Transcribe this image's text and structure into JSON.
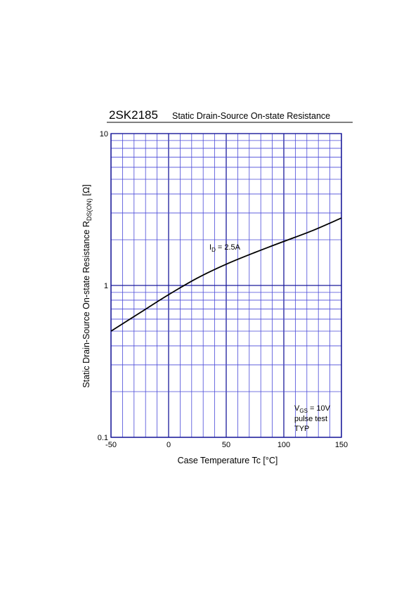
{
  "chart_data": {
    "type": "line",
    "title": "2SK2185",
    "subtitle": "Static Drain-Source On-state Resistance",
    "xlabel": "Case Temperature  Tc  [°C]",
    "ylabel": "Static Drain-Source On-state Resistance  R",
    "ylabel_sub": "DS(ON)",
    "ylabel_unit": "  [Ω]",
    "x_ticks": [
      "-50",
      "0",
      "50",
      "100",
      "150"
    ],
    "y_ticks": [
      "0.1",
      "1",
      "10"
    ],
    "xlim": [
      -50,
      150
    ],
    "ylim": [
      0.1,
      10
    ],
    "yscale": "log",
    "grid": true,
    "series": [
      {
        "name": "ID = 2.5A",
        "x": [
          -50,
          -25,
          0,
          25,
          50,
          75,
          100,
          125,
          150
        ],
        "y": [
          0.5,
          0.66,
          0.87,
          1.12,
          1.38,
          1.65,
          1.95,
          2.3,
          2.78
        ]
      }
    ],
    "annotations": {
      "curve_label": {
        "main": "I",
        "sub": "D",
        "rest": " = 2.5A"
      },
      "conditions": [
        {
          "main": "V",
          "sub": "GS",
          "rest": " = 10V"
        },
        {
          "main": "pulse  test",
          "sub": "",
          "rest": ""
        },
        {
          "main": "TYP",
          "sub": "",
          "rest": ""
        }
      ]
    },
    "colors": {
      "grid": "#4a4ad8",
      "axis": "#1a1a9a",
      "curve": "#000000"
    }
  }
}
